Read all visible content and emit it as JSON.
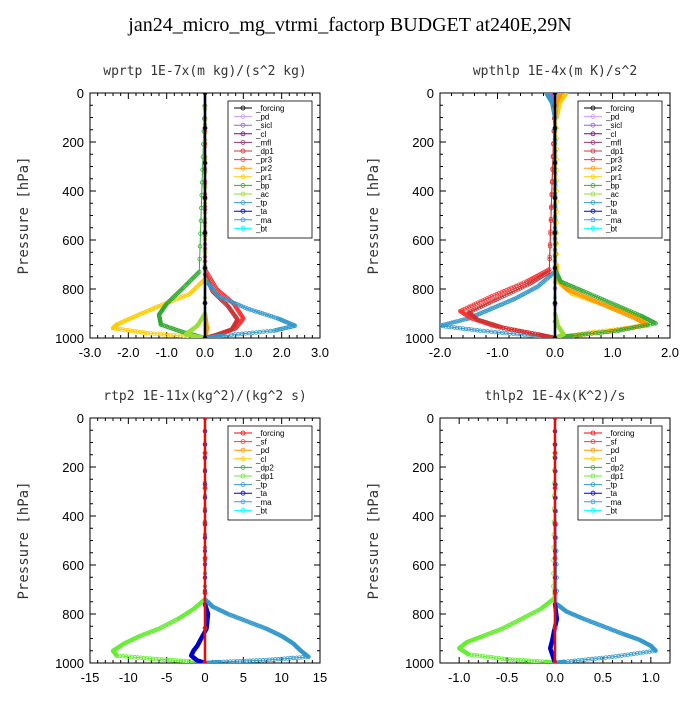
{
  "title": "jan24_micro_mg_vtrmi_factorp  BUDGET at240E,29N",
  "colors": {
    "_forcing_a": "#000000",
    "_pd_a": "#cc99ff",
    "_sicl": "#9966cc",
    "_cl_a": "#800080",
    "_mfl": "#993366",
    "_dp1_a": "#cc3333",
    "_pr3": "#ff3333",
    "_pr2": "#ff9900",
    "_pr1": "#ffcc00",
    "_bp": "#33aa33",
    "_ac": "#99dd33",
    "_tp": "#3399cc",
    "_ta": "#0000cc",
    "_ma": "#3399ff",
    "_bt": "#00ffff",
    "_forcing_b": "#ff0000",
    "_sf": "#ff3333",
    "_pd_b": "#ff9900",
    "_cl_b": "#ffcc00",
    "_dp2": "#33aa33",
    "_dp1_b": "#66ee33"
  },
  "chart_data": [
    {
      "type": "line",
      "title": "wprtp   1E-7x(m kg)/(s^2 kg)",
      "ylabel": "Pressure [hPa]",
      "xlim": [
        -3,
        3
      ],
      "ylim": [
        1000,
        0
      ],
      "xticks": [
        "-3.0",
        "-2.0",
        "-1.0",
        "0.0",
        "1.0",
        "2.0",
        "3.0"
      ],
      "yticks": [
        "0",
        "200",
        "400",
        "600",
        "800",
        "1000"
      ],
      "legend": {
        "position": "top-right",
        "entries": [
          "_forcing",
          "_pd",
          "_sicl",
          "_cl",
          "_mfl",
          "_dp1",
          "_pr3",
          "_pr2",
          "_pr1",
          "_bp",
          "_ac",
          "_tp",
          "_ta",
          "_ma",
          "_bt"
        ]
      },
      "series": [
        {
          "name": "_pd",
          "color": "#cc99ff",
          "x": [
            0,
            0
          ],
          "y": [
            0,
            1000
          ]
        },
        {
          "name": "_sicl",
          "color": "#9966cc",
          "x": [
            0,
            0
          ],
          "y": [
            0,
            1000
          ]
        },
        {
          "name": "_mfl",
          "color": "#993366",
          "x": [
            0,
            0
          ],
          "y": [
            0,
            1000
          ]
        },
        {
          "name": "_pr2",
          "color": "#ff9900",
          "x": [
            0,
            0,
            0.05,
            0
          ],
          "y": [
            0,
            900,
            960,
            1000
          ]
        },
        {
          "name": "_pr3",
          "color": "#ff3333",
          "x": [
            0,
            0,
            0.3,
            0.75,
            1.0,
            0.8,
            0.3,
            0
          ],
          "y": [
            0,
            720,
            800,
            860,
            920,
            960,
            990,
            1000
          ]
        },
        {
          "name": "_dp1",
          "color": "#cc3333",
          "x": [
            0,
            0,
            0.2,
            0.6,
            0.85,
            0.7,
            0.25,
            0
          ],
          "y": [
            0,
            740,
            810,
            870,
            925,
            965,
            990,
            1000
          ]
        },
        {
          "name": "_tp",
          "color": "#3399cc",
          "x": [
            0,
            0,
            0.35,
            1.1,
            1.9,
            2.35,
            1.8,
            0.5,
            0
          ],
          "y": [
            0,
            760,
            830,
            880,
            920,
            950,
            970,
            990,
            1000
          ]
        },
        {
          "name": "_pr1",
          "color": "#ffcc00",
          "x": [
            0,
            0,
            -0.4,
            -1.2,
            -1.8,
            -2.3,
            -2.4,
            -1.5,
            -0.3,
            0
          ],
          "y": [
            0,
            760,
            820,
            870,
            910,
            945,
            960,
            980,
            995,
            1000
          ]
        },
        {
          "name": "_bp",
          "color": "#33aa33",
          "x": [
            0,
            -0.15,
            -0.6,
            -1.0,
            -1.2,
            -1.15,
            -0.6,
            0
          ],
          "y": [
            0,
            730,
            800,
            860,
            905,
            945,
            975,
            1000
          ]
        },
        {
          "name": "_ac",
          "color": "#99dd33",
          "x": [
            0,
            0,
            -0.2,
            -0.5,
            -0.2,
            0
          ],
          "y": [
            0,
            900,
            950,
            985,
            995,
            1000
          ]
        },
        {
          "name": "_ma",
          "color": "#3399ff",
          "x": [
            0,
            0
          ],
          "y": [
            0,
            1000
          ]
        },
        {
          "name": "_ta",
          "color": "#0000cc",
          "x": [
            0,
            0
          ],
          "y": [
            0,
            1000
          ]
        },
        {
          "name": "_bt",
          "color": "#00ffff",
          "x": [
            0,
            0
          ],
          "y": [
            0,
            1000
          ]
        },
        {
          "name": "_cl",
          "color": "#800080",
          "x": [
            0,
            0
          ],
          "y": [
            0,
            1000
          ]
        },
        {
          "name": "_forcing",
          "color": "#000000",
          "x": [
            0,
            0
          ],
          "y": [
            0,
            1000
          ]
        }
      ]
    },
    {
      "type": "line",
      "title": "wpthlp   1E-4x(m K)/s^2",
      "ylabel": "Pressure [hPa]",
      "xlim": [
        -2,
        2
      ],
      "ylim": [
        1000,
        0
      ],
      "xticks": [
        "-2.0",
        "-1.0",
        "0.0",
        "1.0",
        "2.0"
      ],
      "yticks": [
        "0",
        "200",
        "400",
        "600",
        "800",
        "1000"
      ],
      "legend": {
        "position": "top-right",
        "entries": [
          "_forcing",
          "_pd",
          "_sicl",
          "_cl",
          "_mfl",
          "_dp1",
          "_pr3",
          "_pr2",
          "_pr1",
          "_bp",
          "_ac",
          "_tp",
          "_ta",
          "_ma",
          "_bt"
        ]
      },
      "series": [
        {
          "name": "_pd",
          "color": "#cc99ff",
          "x": [
            0.05,
            0,
            0
          ],
          "y": [
            0,
            60,
            1000
          ]
        },
        {
          "name": "_sicl",
          "color": "#9966cc",
          "x": [
            -0.08,
            0,
            0
          ],
          "y": [
            0,
            50,
            1000
          ]
        },
        {
          "name": "_mfl",
          "color": "#993366",
          "x": [
            0,
            0
          ],
          "y": [
            0,
            1000
          ]
        },
        {
          "name": "_pr1",
          "color": "#ffcc00",
          "x": [
            0.2,
            0.08,
            0.03,
            0.03,
            0.05,
            0.3,
            0.8,
            1.3,
            1.55,
            1.6,
            0.7,
            0
          ],
          "y": [
            0,
            40,
            100,
            700,
            770,
            820,
            860,
            900,
            930,
            950,
            975,
            1000
          ]
        },
        {
          "name": "_pr2",
          "color": "#ff9900",
          "x": [
            0.1,
            0.03,
            0,
            0.02,
            0.2,
            0.6,
            1.0,
            1.4,
            1.6,
            0.9,
            0
          ],
          "y": [
            0,
            40,
            100,
            750,
            800,
            840,
            880,
            920,
            945,
            975,
            1000
          ]
        },
        {
          "name": "_bp",
          "color": "#33aa33",
          "x": [
            0,
            0,
            0.1,
            0.5,
            1.0,
            1.5,
            1.75,
            1.1,
            0.3,
            0
          ],
          "y": [
            0,
            720,
            770,
            810,
            860,
            910,
            940,
            970,
            990,
            1000
          ]
        },
        {
          "name": "_ac",
          "color": "#99dd33",
          "x": [
            0,
            0,
            0.05,
            0.15,
            0
          ],
          "y": [
            0,
            900,
            950,
            985,
            1000
          ]
        },
        {
          "name": "_tp",
          "color": "#3399cc",
          "x": [
            -0.15,
            -0.05,
            0,
            0,
            -0.3,
            -0.7,
            -1.1,
            -1.5,
            -2.0,
            -1.3,
            -0.4,
            0
          ],
          "y": [
            0,
            40,
            100,
            730,
            790,
            840,
            880,
            920,
            950,
            970,
            990,
            1000
          ]
        },
        {
          "name": "_pr3",
          "color": "#ff3333",
          "x": [
            0,
            -0.1,
            -0.5,
            -1.1,
            -1.65,
            -1.45,
            -1.0,
            -0.3,
            0
          ],
          "y": [
            0,
            720,
            770,
            830,
            890,
            920,
            955,
            985,
            1000
          ]
        },
        {
          "name": "_dp1",
          "color": "#cc3333",
          "x": [
            0,
            -0.1,
            -0.45,
            -1.0,
            -1.5,
            -1.35,
            -0.9,
            -0.25,
            0
          ],
          "y": [
            0,
            730,
            780,
            840,
            895,
            925,
            958,
            988,
            1000
          ]
        },
        {
          "name": "_ma",
          "color": "#3399ff",
          "x": [
            0,
            0
          ],
          "y": [
            0,
            1000
          ]
        },
        {
          "name": "_ta",
          "color": "#0000cc",
          "x": [
            0,
            0
          ],
          "y": [
            0,
            1000
          ]
        },
        {
          "name": "_bt",
          "color": "#00ffff",
          "x": [
            0,
            0
          ],
          "y": [
            0,
            1000
          ]
        },
        {
          "name": "_cl",
          "color": "#800080",
          "x": [
            0,
            0
          ],
          "y": [
            0,
            1000
          ]
        },
        {
          "name": "_forcing",
          "color": "#000000",
          "x": [
            0,
            0
          ],
          "y": [
            0,
            1000
          ]
        }
      ]
    },
    {
      "type": "line",
      "title": "rtp2   1E-11x(kg^2)/(kg^2 s)",
      "ylabel": "Pressure [hPa]",
      "xlim": [
        -15,
        15
      ],
      "ylim": [
        1000,
        0
      ],
      "xticks": [
        "-15",
        "-10",
        "-5",
        "0",
        "5",
        "10",
        "15"
      ],
      "yticks": [
        "0",
        "200",
        "400",
        "600",
        "800",
        "1000"
      ],
      "legend": {
        "position": "top-right",
        "entries": [
          "_forcing",
          "_sf",
          "_pd",
          "_cl",
          "_dp2",
          "_dp1",
          "_tp",
          "_ta",
          "_ma",
          "_bt"
        ]
      },
      "series": [
        {
          "name": "_sf",
          "color": "#ff3333",
          "x": [
            0,
            0
          ],
          "y": [
            0,
            1000
          ]
        },
        {
          "name": "_pd",
          "color": "#ff9900",
          "x": [
            0,
            0
          ],
          "y": [
            0,
            1000
          ]
        },
        {
          "name": "_cl",
          "color": "#ffcc00",
          "x": [
            0,
            0
          ],
          "y": [
            0,
            1000
          ]
        },
        {
          "name": "_dp2",
          "color": "#33aa33",
          "x": [
            0,
            0
          ],
          "y": [
            0,
            1000
          ]
        },
        {
          "name": "_dp1",
          "color": "#66ee33",
          "x": [
            0,
            0,
            -1.5,
            -3.5,
            -6,
            -8.5,
            -10.5,
            -12,
            -11.5,
            -6,
            -1,
            0
          ],
          "y": [
            0,
            740,
            780,
            820,
            860,
            890,
            920,
            950,
            970,
            985,
            995,
            1000
          ]
        },
        {
          "name": "_tp",
          "color": "#3399cc",
          "x": [
            0,
            0,
            1.0,
            3.0,
            5.5,
            8.0,
            10.0,
            11.5,
            12.5,
            13.5,
            8,
            2,
            0
          ],
          "y": [
            0,
            740,
            770,
            800,
            830,
            860,
            890,
            920,
            950,
            975,
            988,
            996,
            1000
          ]
        },
        {
          "name": "_ta",
          "color": "#0000cc",
          "x": [
            0,
            0,
            0.4,
            0.2,
            -0.5,
            -1.0,
            -1.5,
            -1.8,
            -1.0,
            0
          ],
          "y": [
            0,
            760,
            800,
            860,
            900,
            930,
            950,
            970,
            990,
            1000
          ]
        },
        {
          "name": "_ma",
          "color": "#3399ff",
          "x": [
            0,
            0
          ],
          "y": [
            0,
            1000
          ]
        },
        {
          "name": "_bt",
          "color": "#00ffff",
          "x": [
            0,
            0
          ],
          "y": [
            0,
            1000
          ]
        },
        {
          "name": "_forcing",
          "color": "#ff0000",
          "x": [
            0,
            0
          ],
          "y": [
            0,
            1000
          ]
        }
      ]
    },
    {
      "type": "line",
      "title": "thlp2   1E-4x(K^2)/s",
      "ylabel": "Pressure [hPa]",
      "xlim": [
        -1.2,
        1.2
      ],
      "ylim": [
        1000,
        0
      ],
      "xticks": [
        "-1.0",
        "-0.5",
        "0.0",
        "0.5",
        "1.0"
      ],
      "yticks": [
        "0",
        "200",
        "400",
        "600",
        "800",
        "1000"
      ],
      "legend": {
        "position": "top-right",
        "entries": [
          "_forcing",
          "_sf",
          "_pd",
          "_cl",
          "_dp2",
          "_dp1",
          "_tp",
          "_ta",
          "_ma",
          "_bt"
        ]
      },
      "series": [
        {
          "name": "_sf",
          "color": "#ff3333",
          "x": [
            0,
            0
          ],
          "y": [
            0,
            1000
          ]
        },
        {
          "name": "_pd",
          "color": "#ff9900",
          "x": [
            0,
            0
          ],
          "y": [
            0,
            1000
          ]
        },
        {
          "name": "_cl",
          "color": "#ffcc00",
          "x": [
            0,
            0
          ],
          "y": [
            0,
            1000
          ]
        },
        {
          "name": "_dp2",
          "color": "#33aa33",
          "x": [
            0,
            0
          ],
          "y": [
            0,
            1000
          ]
        },
        {
          "name": "_dp1",
          "color": "#66ee33",
          "x": [
            0,
            -0.02,
            -0.15,
            -0.35,
            -0.55,
            -0.75,
            -0.92,
            -1.0,
            -0.9,
            -0.5,
            -0.1,
            0
          ],
          "y": [
            0,
            740,
            780,
            820,
            860,
            890,
            915,
            940,
            965,
            985,
            995,
            1000
          ]
        },
        {
          "name": "_tp",
          "color": "#3399cc",
          "x": [
            0,
            0.02,
            0.12,
            0.3,
            0.5,
            0.7,
            0.88,
            1.0,
            1.05,
            0.6,
            0.1,
            0
          ],
          "y": [
            0,
            760,
            790,
            820,
            850,
            880,
            905,
            930,
            950,
            975,
            995,
            1000
          ]
        },
        {
          "name": "_ta",
          "color": "#0000cc",
          "x": [
            0,
            0,
            0.02,
            -0.01,
            -0.03,
            -0.05,
            -0.02,
            0
          ],
          "y": [
            0,
            760,
            820,
            870,
            910,
            940,
            975,
            1000
          ]
        },
        {
          "name": "_ma",
          "color": "#3399ff",
          "x": [
            0,
            0
          ],
          "y": [
            0,
            1000
          ]
        },
        {
          "name": "_bt",
          "color": "#00ffff",
          "x": [
            0,
            0
          ],
          "y": [
            0,
            1000
          ]
        },
        {
          "name": "_forcing",
          "color": "#ff0000",
          "x": [
            0,
            0
          ],
          "y": [
            0,
            1000
          ]
        }
      ]
    }
  ]
}
